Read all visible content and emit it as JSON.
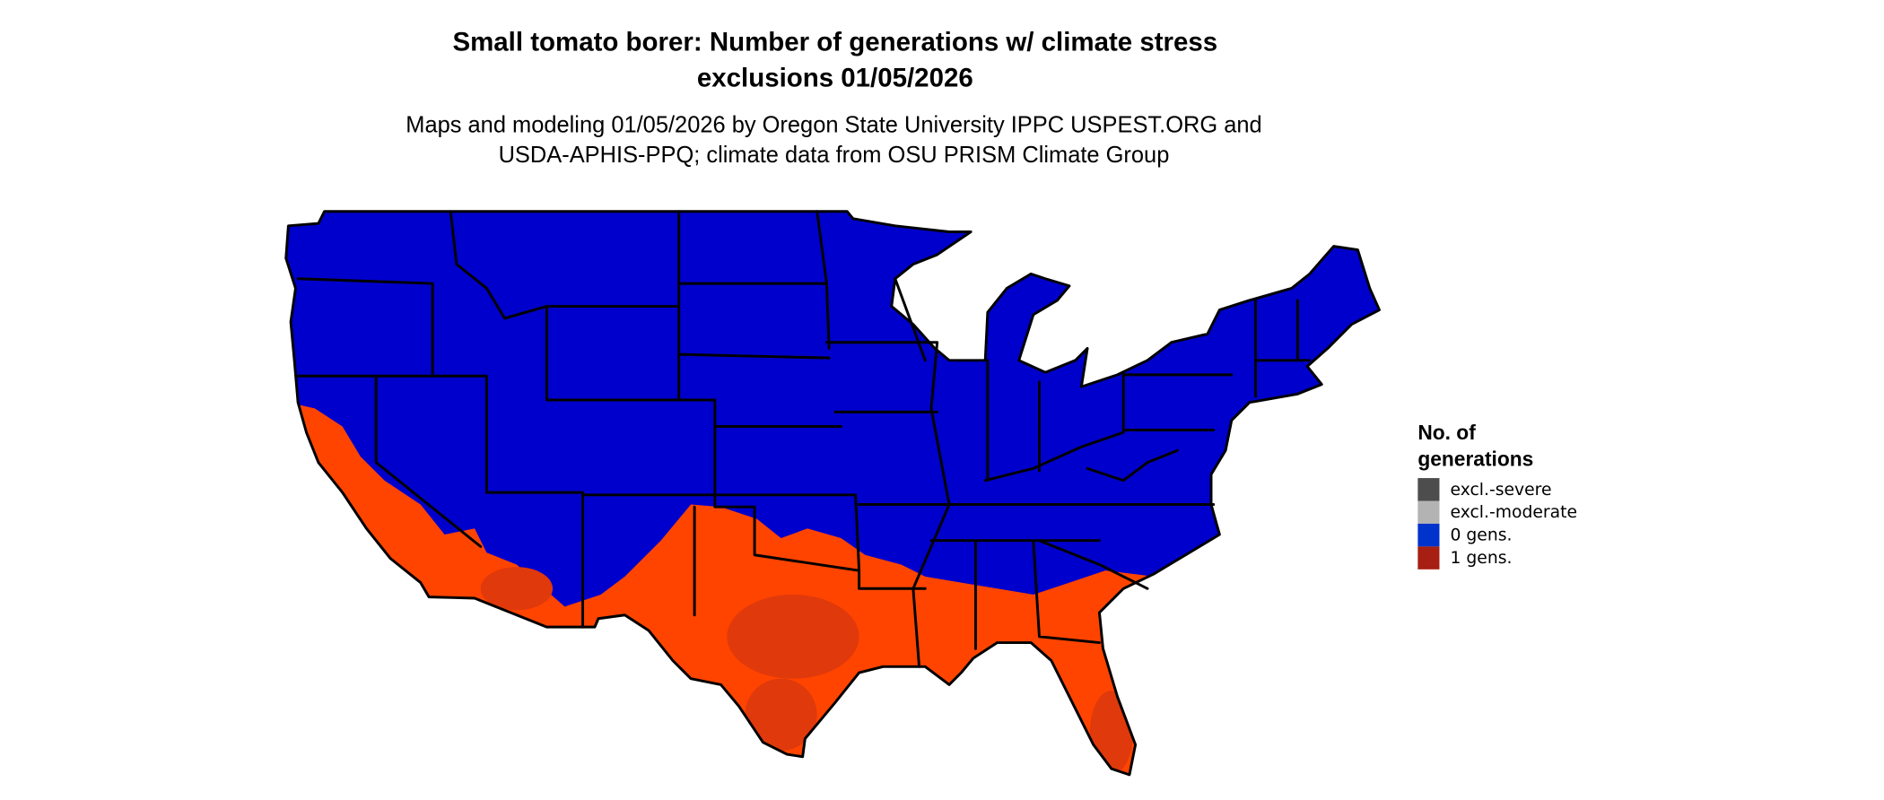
{
  "title": {
    "line1": "Small tomato borer: Number of generations w/ climate stress",
    "line2": "exclusions 01/05/2026"
  },
  "subtitle": {
    "line1": "Maps and modeling 01/05/2026 by Oregon State University IPPC USPEST.ORG and",
    "line2": "USDA-APHIS-PPQ; climate data from OSU PRISM Climate Group"
  },
  "legend": {
    "title_line1": "No. of",
    "title_line2": "generations",
    "items": [
      {
        "label": "excl.-severe",
        "color": "#4d4d4d"
      },
      {
        "label": "excl.-moderate",
        "color": "#b3b3b3"
      },
      {
        "label": "0 gens.",
        "color": "#0033cc"
      },
      {
        "label": "1 gens.",
        "color": "#a61f12"
      }
    ]
  },
  "map_colors": {
    "zero_gens_fill": "#0000cc",
    "one_gen_fill": "#ff4400",
    "one_gen_dark": "#e0390c"
  }
}
